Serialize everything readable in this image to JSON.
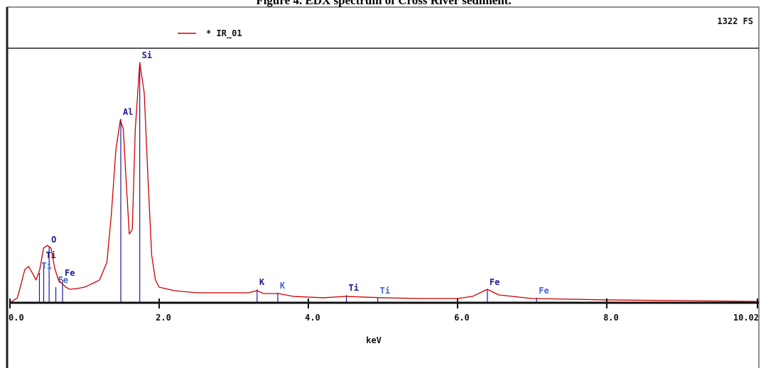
{
  "chart_data": {
    "type": "line",
    "title": "Figure 4.  EDX spectrum of Cross River sediment.",
    "full_scale_label": "1322 FS",
    "xlabel": "keV",
    "xlim": [
      0,
      10.02
    ],
    "ylim": [
      0,
      1322
    ],
    "xticks": [
      {
        "value": 0,
        "label": "0.0"
      },
      {
        "value": 2,
        "label": "2.0"
      },
      {
        "value": 4,
        "label": "4.0"
      },
      {
        "value": 6,
        "label": "6.0"
      },
      {
        "value": 8,
        "label": "8.0"
      },
      10.02
    ],
    "x": [
      0,
      0.1,
      0.15,
      0.2,
      0.25,
      0.3,
      0.35,
      0.4,
      0.45,
      0.5,
      0.55,
      0.6,
      0.65,
      0.7,
      0.75,
      0.8,
      0.9,
      1.0,
      1.1,
      1.2,
      1.3,
      1.36,
      1.42,
      1.48,
      1.52,
      1.56,
      1.6,
      1.64,
      1.68,
      1.74,
      1.8,
      1.85,
      1.9,
      1.95,
      2.0,
      2.2,
      2.5,
      3.0,
      3.2,
      3.31,
      3.4,
      3.6,
      3.8,
      4.2,
      4.5,
      5.0,
      5.5,
      6.0,
      6.2,
      6.4,
      6.55,
      7.0,
      8.0,
      9.0,
      10.02
    ],
    "series": [
      {
        "name": "* IR_01",
        "color": "#cc0000",
        "values": [
          0,
          26,
          99,
          173,
          188,
          155,
          118,
          173,
          284,
          298,
          284,
          180,
          118,
          99,
          81,
          70,
          74,
          81,
          99,
          118,
          210,
          464,
          795,
          950,
          900,
          615,
          357,
          380,
          900,
          1248,
          1090,
          648,
          247,
          118,
          81,
          63,
          52,
          52,
          52,
          63,
          48,
          48,
          33,
          26,
          33,
          26,
          22,
          22,
          33,
          70,
          41,
          22,
          15,
          11,
          7
        ]
      }
    ],
    "markers": [
      {
        "label": "O",
        "x": 0.525,
        "height": 291,
        "style": "major"
      },
      {
        "label": "Ti",
        "x": 0.452,
        "height": 210,
        "style": "major"
      },
      {
        "label": "Ti",
        "x": 0.395,
        "height": 155,
        "style": "minor"
      },
      {
        "label": "Fe",
        "x": 0.705,
        "height": 118,
        "style": "major"
      },
      {
        "label": "Fe",
        "x": 0.615,
        "height": 81,
        "style": "minor"
      },
      {
        "label": "Al",
        "x": 1.486,
        "height": 954,
        "style": "major"
      },
      {
        "label": "Si",
        "x": 1.74,
        "height": 1248,
        "style": "major"
      },
      {
        "label": "K",
        "x": 3.313,
        "height": 70,
        "style": "major"
      },
      {
        "label": "K",
        "x": 3.59,
        "height": 52,
        "style": "minor"
      },
      {
        "label": "Ti",
        "x": 4.51,
        "height": 40,
        "style": "major"
      },
      {
        "label": "Ti",
        "x": 4.93,
        "height": 26,
        "style": "minor"
      },
      {
        "label": "Fe",
        "x": 6.4,
        "height": 70,
        "style": "major"
      },
      {
        "label": "Fe",
        "x": 7.06,
        "height": 26,
        "style": "minor"
      }
    ]
  }
}
